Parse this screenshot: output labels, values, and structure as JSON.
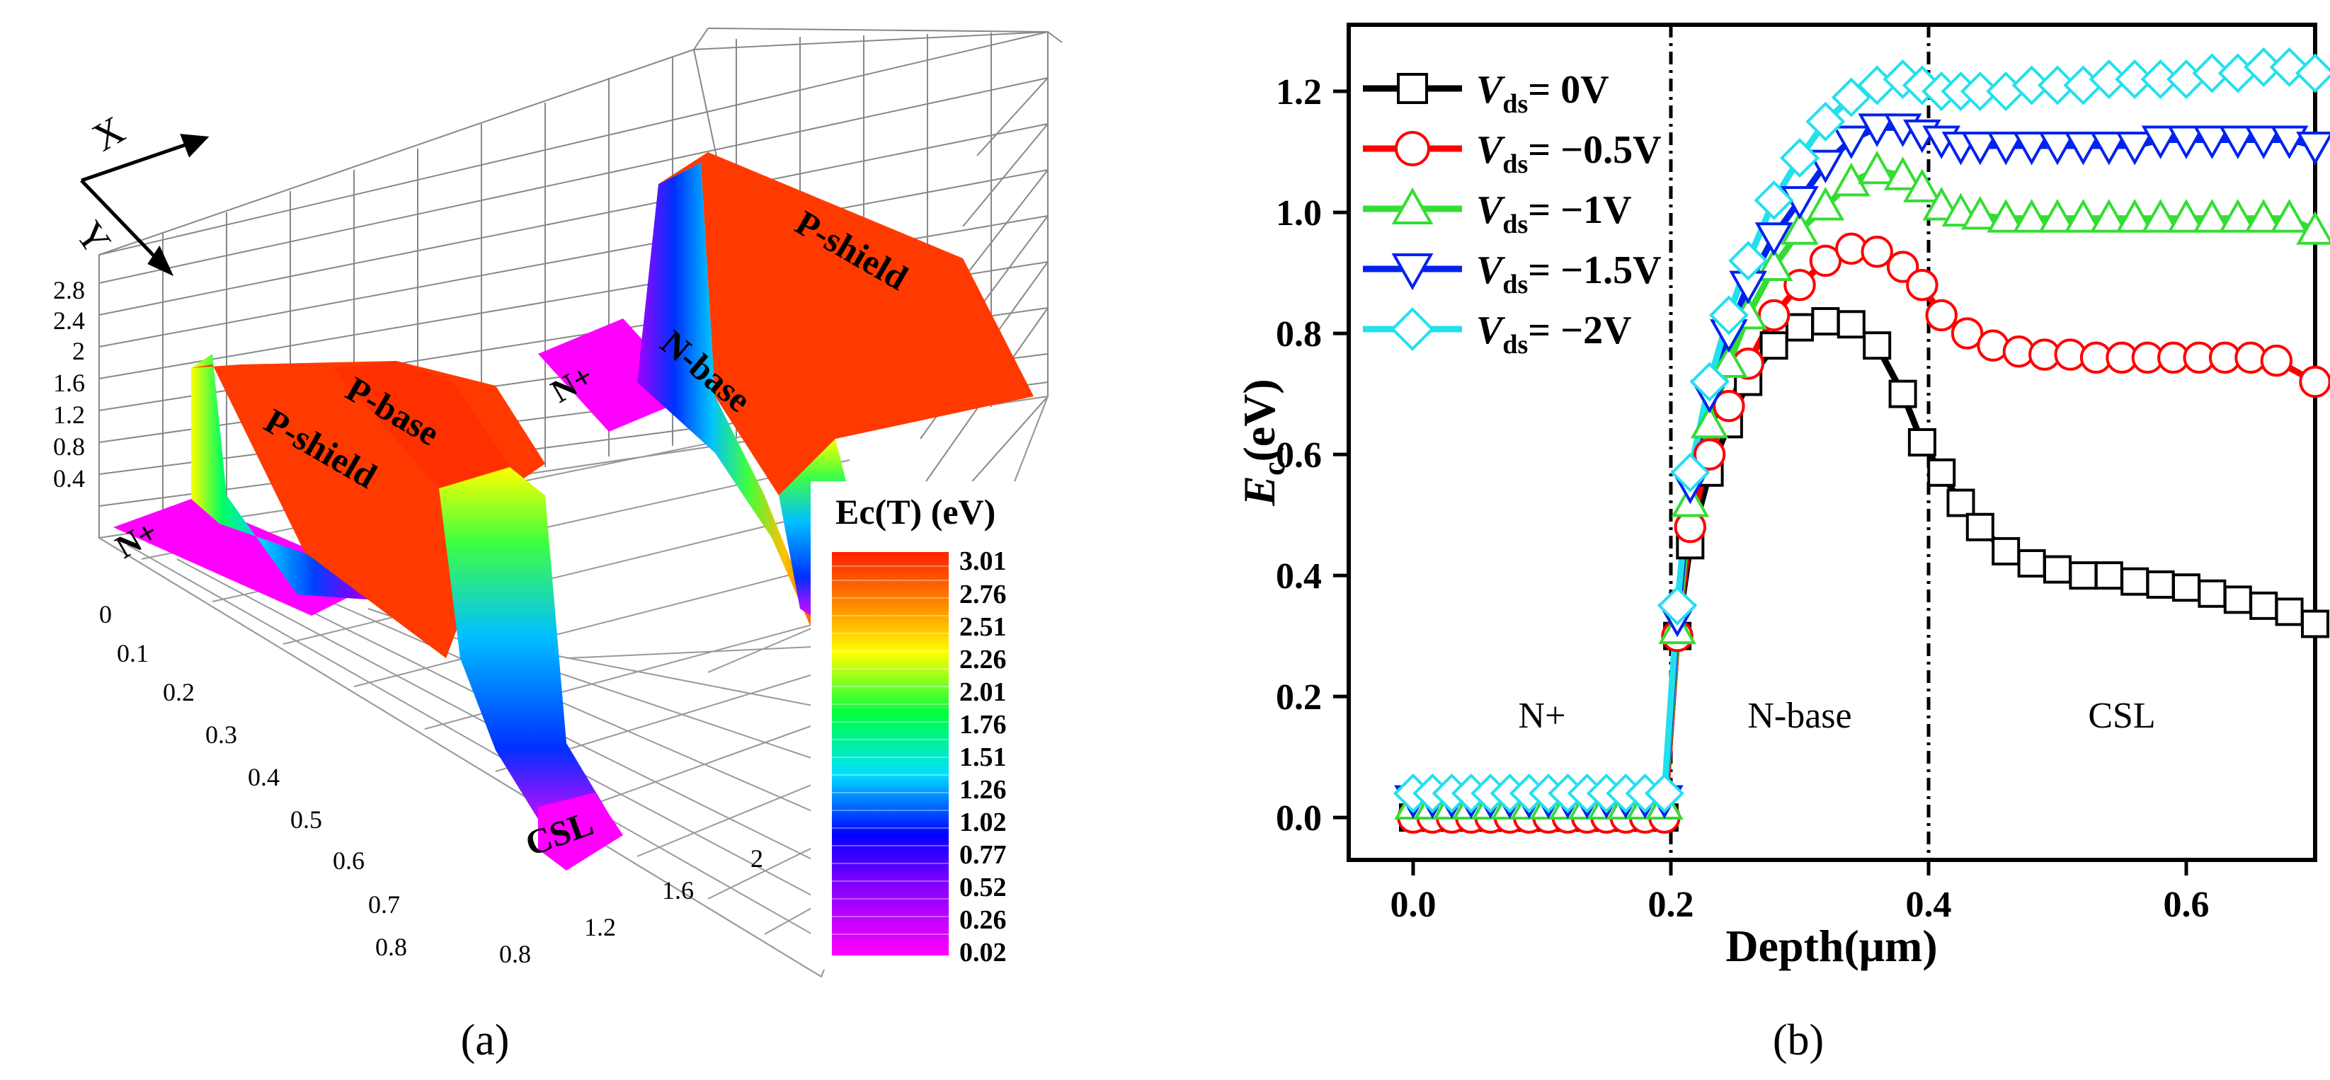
{
  "panel_a_label": "(a)",
  "panel_b_label": "(b)",
  "chart_data": [
    {
      "type": "heatmap",
      "panel": "a",
      "description_type": "3d-surface",
      "axis_arrows": [
        "X",
        "Y"
      ],
      "z_ticks": [
        "0.4",
        "0.8",
        "1.2",
        "1.6",
        "2",
        "2.4",
        "2.8"
      ],
      "y_ticks": [
        "0",
        "0.1",
        "0.2",
        "0.3",
        "0.4",
        "0.5",
        "0.6",
        "0.7",
        "0.8"
      ],
      "x_ticks": [
        "0.8",
        "1.2",
        "1.6",
        "2"
      ],
      "region_labels": [
        "N+",
        "P-shield",
        "P-base",
        "N+",
        "N-base",
        "P-shield",
        "CSL"
      ],
      "colorbar": {
        "title": "Ec(T) (eV)",
        "ticks": [
          "3.01",
          "2.76",
          "2.51",
          "2.26",
          "2.01",
          "1.76",
          "1.51",
          "1.26",
          "1.02",
          "0.77",
          "0.52",
          "0.26",
          "0.02"
        ],
        "range": [
          0.02,
          3.01
        ]
      }
    },
    {
      "type": "line",
      "panel": "b",
      "xlabel": "Depth(μm)",
      "ylabel_main": "E",
      "ylabel_sub": "c",
      "ylabel_tail": "(eV)",
      "xlim": [
        -0.05,
        0.7
      ],
      "ylim": [
        -0.07,
        1.31
      ],
      "x_ticks": [
        0.0,
        0.2,
        0.4,
        0.6
      ],
      "x_tick_labels": [
        "0.0",
        "0.2",
        "0.4",
        "0.6"
      ],
      "y_ticks": [
        0.0,
        0.2,
        0.4,
        0.6,
        0.8,
        1.0,
        1.2
      ],
      "y_tick_labels": [
        "0.0",
        "0.2",
        "0.4",
        "0.6",
        "0.8",
        "1.0",
        "1.2"
      ],
      "boundaries": [
        0.2,
        0.4
      ],
      "region_labels": [
        {
          "text": "N+",
          "x": 0.1,
          "y": 0.17
        },
        {
          "text": "N-base",
          "x": 0.3,
          "y": 0.17
        },
        {
          "text": "CSL",
          "x": 0.55,
          "y": 0.17
        }
      ],
      "legend_position": "top-left",
      "legend_var": "V",
      "legend_sub": "ds",
      "series": [
        {
          "name": "Vds = 0V",
          "label_tail": "= 0V",
          "color": "#000000",
          "marker": "square",
          "x": [
            0.0,
            0.015,
            0.03,
            0.045,
            0.06,
            0.075,
            0.09,
            0.105,
            0.12,
            0.135,
            0.15,
            0.165,
            0.18,
            0.195,
            0.205,
            0.215,
            0.23,
            0.245,
            0.26,
            0.28,
            0.3,
            0.32,
            0.34,
            0.36,
            0.38,
            0.395,
            0.41,
            0.425,
            0.44,
            0.46,
            0.48,
            0.5,
            0.52,
            0.54,
            0.56,
            0.58,
            0.6,
            0.62,
            0.64,
            0.66,
            0.68,
            0.7
          ],
          "y": [
            0.0,
            0.0,
            0.0,
            0.0,
            0.0,
            0.0,
            0.0,
            0.0,
            0.0,
            0.0,
            0.0,
            0.0,
            0.0,
            0.0,
            0.3,
            0.45,
            0.57,
            0.65,
            0.72,
            0.78,
            0.81,
            0.82,
            0.815,
            0.78,
            0.7,
            0.62,
            0.57,
            0.52,
            0.48,
            0.44,
            0.42,
            0.41,
            0.4,
            0.4,
            0.39,
            0.385,
            0.38,
            0.37,
            0.36,
            0.35,
            0.34,
            0.32
          ]
        },
        {
          "name": "Vds = -0.5V",
          "label_tail": "= −0.5V",
          "color": "#ff0000",
          "marker": "circle",
          "x": [
            0.0,
            0.015,
            0.03,
            0.045,
            0.06,
            0.075,
            0.09,
            0.105,
            0.12,
            0.135,
            0.15,
            0.165,
            0.18,
            0.195,
            0.205,
            0.215,
            0.23,
            0.245,
            0.26,
            0.28,
            0.3,
            0.32,
            0.34,
            0.36,
            0.38,
            0.395,
            0.41,
            0.43,
            0.45,
            0.47,
            0.49,
            0.51,
            0.53,
            0.55,
            0.57,
            0.59,
            0.61,
            0.63,
            0.65,
            0.67,
            0.7
          ],
          "y": [
            0.0,
            0.0,
            0.0,
            0.0,
            0.0,
            0.0,
            0.0,
            0.0,
            0.0,
            0.0,
            0.0,
            0.0,
            0.0,
            0.0,
            0.3,
            0.48,
            0.6,
            0.68,
            0.75,
            0.83,
            0.88,
            0.92,
            0.94,
            0.935,
            0.91,
            0.88,
            0.83,
            0.8,
            0.78,
            0.77,
            0.765,
            0.765,
            0.76,
            0.76,
            0.76,
            0.76,
            0.76,
            0.76,
            0.76,
            0.755,
            0.72
          ]
        },
        {
          "name": "Vds = -1V",
          "label_tail": "= −1V",
          "color": "#33dd33",
          "marker": "triangle-up",
          "x": [
            0.0,
            0.015,
            0.03,
            0.045,
            0.06,
            0.075,
            0.09,
            0.105,
            0.12,
            0.135,
            0.15,
            0.165,
            0.18,
            0.195,
            0.205,
            0.215,
            0.23,
            0.245,
            0.26,
            0.28,
            0.3,
            0.32,
            0.34,
            0.36,
            0.38,
            0.395,
            0.41,
            0.425,
            0.44,
            0.46,
            0.48,
            0.5,
            0.52,
            0.54,
            0.56,
            0.58,
            0.6,
            0.62,
            0.64,
            0.66,
            0.68,
            0.7
          ],
          "y": [
            0.02,
            0.02,
            0.02,
            0.02,
            0.02,
            0.02,
            0.02,
            0.02,
            0.02,
            0.02,
            0.02,
            0.02,
            0.02,
            0.02,
            0.31,
            0.52,
            0.65,
            0.75,
            0.83,
            0.91,
            0.97,
            1.01,
            1.05,
            1.07,
            1.06,
            1.04,
            1.01,
            1.0,
            0.995,
            0.99,
            0.99,
            0.99,
            0.99,
            0.99,
            0.99,
            0.99,
            0.99,
            0.99,
            0.99,
            0.99,
            0.99,
            0.97
          ]
        },
        {
          "name": "Vds = -1.5V",
          "label_tail": "= −1.5V",
          "color": "#0022ee",
          "marker": "triangle-down",
          "x": [
            0.0,
            0.015,
            0.03,
            0.045,
            0.06,
            0.075,
            0.09,
            0.105,
            0.12,
            0.135,
            0.15,
            0.165,
            0.18,
            0.195,
            0.205,
            0.215,
            0.23,
            0.245,
            0.26,
            0.28,
            0.3,
            0.32,
            0.34,
            0.36,
            0.38,
            0.395,
            0.41,
            0.425,
            0.44,
            0.46,
            0.48,
            0.5,
            0.52,
            0.54,
            0.56,
            0.58,
            0.6,
            0.62,
            0.64,
            0.66,
            0.68,
            0.7
          ],
          "y": [
            0.03,
            0.03,
            0.03,
            0.03,
            0.03,
            0.03,
            0.03,
            0.03,
            0.03,
            0.03,
            0.03,
            0.03,
            0.03,
            0.03,
            0.33,
            0.55,
            0.7,
            0.8,
            0.88,
            0.96,
            1.02,
            1.08,
            1.12,
            1.14,
            1.14,
            1.13,
            1.12,
            1.11,
            1.11,
            1.11,
            1.11,
            1.11,
            1.11,
            1.11,
            1.11,
            1.12,
            1.12,
            1.12,
            1.12,
            1.12,
            1.12,
            1.11
          ]
        },
        {
          "name": "Vds = -2V",
          "label_tail": "= −2V",
          "color": "#22e0ee",
          "marker": "diamond",
          "x": [
            0.0,
            0.015,
            0.03,
            0.045,
            0.06,
            0.075,
            0.09,
            0.105,
            0.12,
            0.135,
            0.15,
            0.165,
            0.18,
            0.195,
            0.205,
            0.215,
            0.23,
            0.245,
            0.26,
            0.28,
            0.3,
            0.32,
            0.34,
            0.36,
            0.38,
            0.395,
            0.41,
            0.425,
            0.44,
            0.46,
            0.48,
            0.5,
            0.52,
            0.54,
            0.56,
            0.58,
            0.6,
            0.62,
            0.64,
            0.66,
            0.68,
            0.7
          ],
          "y": [
            0.04,
            0.04,
            0.04,
            0.04,
            0.04,
            0.04,
            0.04,
            0.04,
            0.04,
            0.04,
            0.04,
            0.04,
            0.04,
            0.04,
            0.35,
            0.57,
            0.72,
            0.83,
            0.92,
            1.02,
            1.09,
            1.15,
            1.19,
            1.21,
            1.22,
            1.21,
            1.2,
            1.2,
            1.2,
            1.2,
            1.21,
            1.21,
            1.21,
            1.22,
            1.22,
            1.22,
            1.22,
            1.23,
            1.23,
            1.24,
            1.24,
            1.23
          ]
        }
      ]
    }
  ]
}
